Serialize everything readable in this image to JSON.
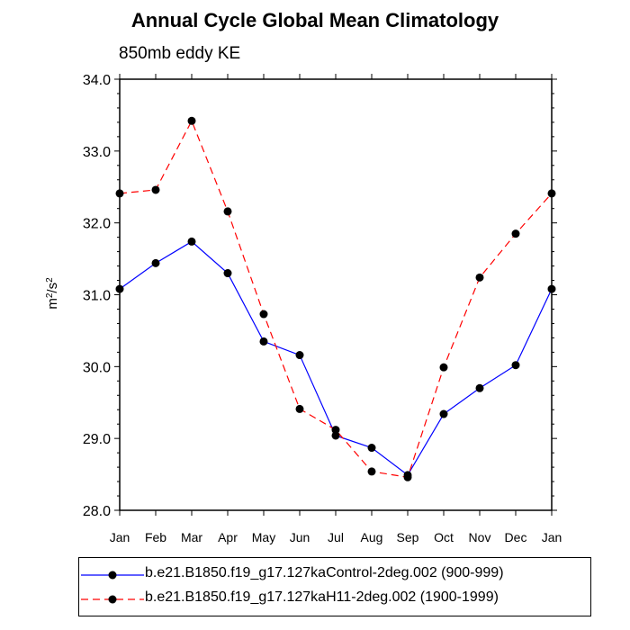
{
  "chart_data": {
    "type": "line",
    "title": "Annual Cycle Global Mean Climatology",
    "subtitle": "850mb eddy KE",
    "ylabel_base": "m",
    "ylabel_sup1": "2",
    "ylabel_mid": "/s",
    "ylabel_sup2": "2",
    "xlabel": "",
    "categories": [
      "Jan",
      "Feb",
      "Mar",
      "Apr",
      "May",
      "Jun",
      "Jul",
      "Aug",
      "Sep",
      "Oct",
      "Nov",
      "Dec",
      "Jan"
    ],
    "ylim": [
      28.0,
      34.0
    ],
    "yticks": [
      "28.0",
      "29.0",
      "30.0",
      "31.0",
      "32.0",
      "33.0",
      "34.0"
    ],
    "series": [
      {
        "name": "b.e21.B1850.f19_g17.127kaControl-2deg.002 (900-999)",
        "color": "#0000ff",
        "dash": "solid",
        "values": [
          31.08,
          31.44,
          31.74,
          31.3,
          30.35,
          30.16,
          29.04,
          28.87,
          28.49,
          29.34,
          29.7,
          30.02,
          31.08
        ]
      },
      {
        "name": "b.e21.B1850.f19_g17.127kaH11-2deg.002 (1900-1999)",
        "color": "#ff0000",
        "dash": "dashed",
        "values": [
          32.41,
          32.46,
          33.42,
          32.16,
          30.73,
          29.41,
          29.12,
          28.54,
          28.46,
          29.99,
          31.24,
          31.85,
          32.41
        ]
      }
    ]
  }
}
